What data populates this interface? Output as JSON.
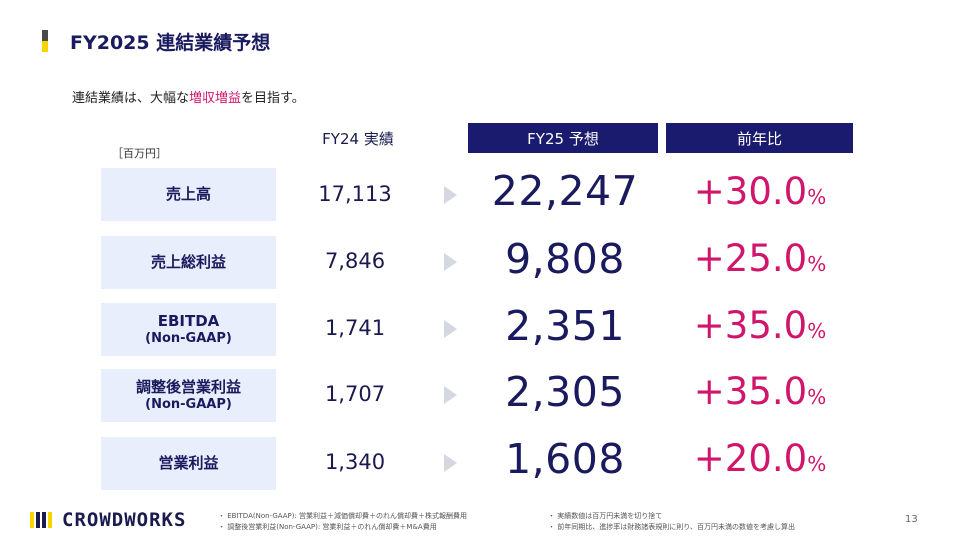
{
  "header": {
    "title": "FY2025 連結業績予想",
    "subtitle_pre": "連結業績は、大幅な",
    "subtitle_highlight": "増収増益",
    "subtitle_post": "を目指す。"
  },
  "table": {
    "unit": "［百万円］",
    "col_fy24": "FY24 実績",
    "col_fy25": "FY25 予想",
    "col_yoy": "前年比",
    "rows": [
      {
        "label": "売上高",
        "sub": "",
        "fy24": "17,113",
        "fy25": "22,247",
        "yoy": "+30.0",
        "pct": "%"
      },
      {
        "label": "売上総利益",
        "sub": "",
        "fy24": "7,846",
        "fy25": "9,808",
        "yoy": "+25.0",
        "pct": "%"
      },
      {
        "label": "EBITDA",
        "sub": "(Non-GAAP)",
        "fy24": "1,741",
        "fy25": "2,351",
        "yoy": "+35.0",
        "pct": "%"
      },
      {
        "label": "調整後営業利益",
        "sub": "(Non-GAAP)",
        "fy24": "1,707",
        "fy25": "2,305",
        "yoy": "+35.0",
        "pct": "%"
      },
      {
        "label": "営業利益",
        "sub": "",
        "fy24": "1,340",
        "fy25": "1,608",
        "yoy": "+20.0",
        "pct": "%"
      }
    ]
  },
  "footer": {
    "logo_text": "CROWDWORKS",
    "notes_left": [
      "EBITDA(Non-GAAP): 営業利益＋減価償却費＋のれん償却費＋株式報酬費用",
      "調整後営業利益(Non-GAAP): 営業利益＋のれん償却費＋M&A費用"
    ],
    "notes_right": [
      "実績数値は百万円未満を切り捨て",
      "前年同期比、進捗率は財務諸表規則に則り、百万円未満の数値を考慮し算出"
    ],
    "page_number": "13"
  },
  "colors": {
    "navy": "#1a1a6e",
    "magenta": "#d0156b",
    "label_bg": "#e8eefc",
    "accent_yellow": "#f5d400"
  }
}
